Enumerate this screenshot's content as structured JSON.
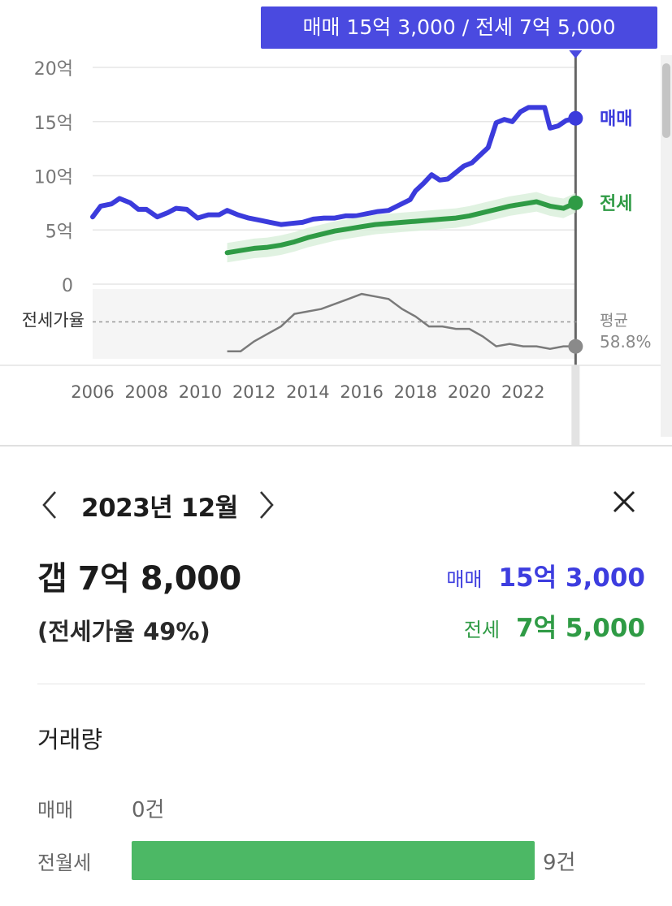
{
  "tooltip": "매매 15억 3,000 / 전세 7억 5,000",
  "chart_data": {
    "type": "line",
    "y_ticks": [
      "20억",
      "15억",
      "10억",
      "5억",
      "0"
    ],
    "y_tick_values": [
      20,
      15,
      10,
      5,
      0
    ],
    "ylim": [
      0,
      20
    ],
    "y_unit": "억",
    "x_ticks": [
      "2006",
      "2008",
      "2010",
      "2012",
      "2014",
      "2016",
      "2018",
      "2020",
      "2022"
    ],
    "xlim": [
      2006,
      2024
    ],
    "selected_x": 2023.95,
    "series": [
      {
        "name": "매매",
        "color": "#3b3bdc",
        "end_label": "매매",
        "x": [
          2006.0,
          2006.3,
          2006.7,
          2007.0,
          2007.4,
          2007.7,
          2008.0,
          2008.4,
          2008.8,
          2009.1,
          2009.5,
          2009.9,
          2010.3,
          2010.7,
          2011.0,
          2011.4,
          2011.8,
          2012.2,
          2012.6,
          2013.0,
          2013.4,
          2013.8,
          2014.2,
          2014.6,
          2015.0,
          2015.4,
          2015.8,
          2016.2,
          2016.6,
          2017.0,
          2017.4,
          2017.8,
          2018.0,
          2018.3,
          2018.6,
          2018.9,
          2019.2,
          2019.5,
          2019.8,
          2020.1,
          2020.4,
          2020.7,
          2021.0,
          2021.3,
          2021.6,
          2021.9,
          2022.2,
          2022.5,
          2022.8,
          2023.0,
          2023.3,
          2023.6,
          2023.95
        ],
        "values": [
          6.2,
          7.2,
          7.4,
          7.9,
          7.5,
          6.9,
          6.9,
          6.2,
          6.6,
          7.0,
          6.9,
          6.1,
          6.4,
          6.4,
          6.8,
          6.4,
          6.1,
          5.9,
          5.7,
          5.5,
          5.6,
          5.7,
          6.0,
          6.1,
          6.1,
          6.3,
          6.3,
          6.5,
          6.7,
          6.8,
          7.3,
          7.8,
          8.6,
          9.3,
          10.1,
          9.6,
          9.7,
          10.3,
          10.9,
          11.2,
          11.9,
          12.6,
          14.9,
          15.2,
          15.0,
          15.9,
          16.3,
          16.3,
          16.3,
          14.4,
          14.6,
          15.1,
          15.3
        ]
      },
      {
        "name": "전세",
        "color": "#2f9b45",
        "end_label": "전세",
        "x": [
          2011.0,
          2011.5,
          2012.0,
          2012.5,
          2013.0,
          2013.5,
          2014.0,
          2014.5,
          2015.0,
          2015.5,
          2016.0,
          2016.5,
          2017.0,
          2017.5,
          2018.0,
          2018.5,
          2019.0,
          2019.5,
          2020.0,
          2020.5,
          2021.0,
          2021.5,
          2022.0,
          2022.5,
          2023.0,
          2023.5,
          2023.95
        ],
        "values": [
          2.9,
          3.1,
          3.3,
          3.4,
          3.6,
          3.9,
          4.3,
          4.6,
          4.9,
          5.1,
          5.3,
          5.5,
          5.6,
          5.7,
          5.8,
          5.9,
          6.0,
          6.1,
          6.3,
          6.6,
          6.9,
          7.2,
          7.4,
          7.6,
          7.2,
          7.0,
          7.5
        ]
      }
    ],
    "ratio_panel": {
      "label": "전세가율",
      "average_label": "평균",
      "average_value": "58.8%",
      "average": 58.8,
      "ylim": [
        44,
        72
      ],
      "color": "#7a7a7a",
      "x": [
        2011.0,
        2011.5,
        2012.0,
        2012.5,
        2013.0,
        2013.5,
        2014.0,
        2014.5,
        2015.0,
        2015.5,
        2016.0,
        2016.5,
        2017.0,
        2017.5,
        2018.0,
        2018.5,
        2019.0,
        2019.5,
        2020.0,
        2020.5,
        2021.0,
        2021.5,
        2022.0,
        2022.5,
        2023.0,
        2023.5,
        2023.95
      ],
      "values": [
        47,
        47,
        51,
        54,
        57,
        62,
        63,
        64,
        66,
        68,
        70,
        69,
        68,
        64,
        61,
        57,
        57,
        56,
        56,
        53,
        49,
        50,
        49,
        49,
        48,
        49,
        49
      ]
    }
  },
  "detail": {
    "month": "2023년 12월",
    "gap": "갭 7억 8,000",
    "ratio": "(전세가율 49%)",
    "sale_label": "매매",
    "sale_value": "15억 3,000",
    "jeonse_label": "전세",
    "jeonse_value": "7억 5,000",
    "volume_title": "거래량",
    "volume": [
      {
        "label": "매매",
        "count": "0건",
        "fraction": 0
      },
      {
        "label": "전월세",
        "count": "9건",
        "fraction": 1
      }
    ]
  }
}
